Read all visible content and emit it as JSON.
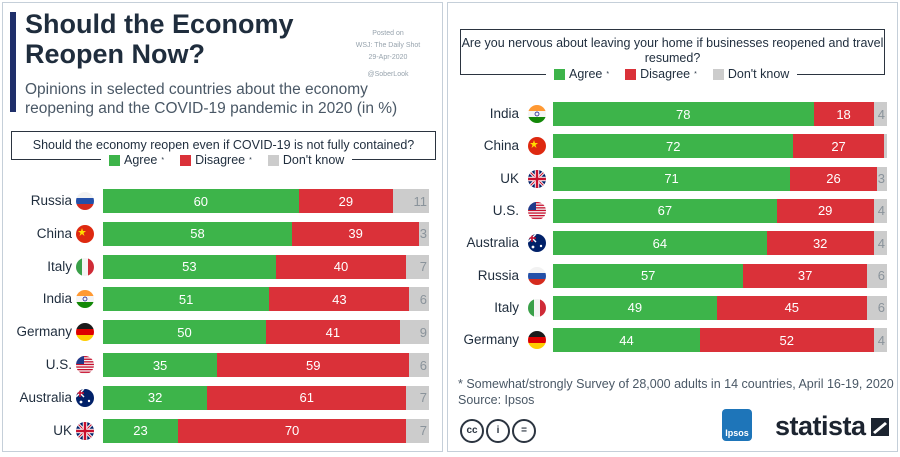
{
  "colors": {
    "agree": "#3db44a",
    "disagree": "#da3139",
    "dont_know": "#cccccc",
    "title_bar": "#1f2f6a"
  },
  "title": "Should the Economy Reopen Now?",
  "subtitle": "Opinions in selected countries about the economy reopening and the COVID-19 pandemic in 2020 (in %)",
  "source_note": {
    "line1": "Posted on",
    "line2": "WSJ: The Daily Shot",
    "line3": "29-Apr-2020",
    "line4": "@SoberLook"
  },
  "footnote": "* Somewhat/strongly Survey of 28,000 adults in 14 countries, April 16-19, 2020",
  "source": "Source: Ipsos",
  "logos": {
    "ipsos": "Ipsos",
    "statista": "statista",
    "cc": "cc",
    "by": "i",
    "nd": "="
  },
  "legend": {
    "agree": "Agree",
    "disagree": "Disagree",
    "dont_know": "Don't know",
    "star": "*"
  },
  "chart_data": [
    {
      "type": "bar",
      "stacked": true,
      "orientation": "horizontal",
      "title": "Should the economy reopen even if COVID-19 is not fully contained?",
      "categories": [
        "Russia",
        "China",
        "Italy",
        "India",
        "Germany",
        "U.S.",
        "Australia",
        "UK"
      ],
      "flags": [
        "russia-flag-icon",
        "china-flag-icon",
        "italy-flag-icon",
        "india-flag-icon",
        "germany-flag-icon",
        "us-flag-icon",
        "australia-flag-icon",
        "uk-flag-icon"
      ],
      "series": [
        {
          "name": "Agree*",
          "values": [
            60,
            58,
            53,
            51,
            50,
            35,
            32,
            23
          ]
        },
        {
          "name": "Disagree*",
          "values": [
            29,
            39,
            40,
            43,
            41,
            59,
            61,
            70
          ]
        },
        {
          "name": "Don't know",
          "values": [
            11,
            3,
            7,
            6,
            9,
            6,
            7,
            7
          ]
        }
      ],
      "xlim": [
        0,
        100
      ]
    },
    {
      "type": "bar",
      "stacked": true,
      "orientation": "horizontal",
      "title": "Are you nervous about leaving your home if businesses reopened and travel resumed?",
      "categories": [
        "India",
        "China",
        "UK",
        "U.S.",
        "Australia",
        "Russia",
        "Italy",
        "Germany"
      ],
      "flags": [
        "india-flag-icon",
        "china-flag-icon",
        "uk-flag-icon",
        "us-flag-icon",
        "australia-flag-icon",
        "russia-flag-icon",
        "italy-flag-icon",
        "germany-flag-icon"
      ],
      "series": [
        {
          "name": "Agree*",
          "values": [
            78,
            72,
            71,
            67,
            64,
            57,
            49,
            44
          ]
        },
        {
          "name": "Disagree*",
          "values": [
            18,
            27,
            26,
            29,
            32,
            37,
            45,
            52
          ]
        },
        {
          "name": "Don't know",
          "values": [
            4,
            1,
            3,
            4,
            4,
            6,
            6,
            4
          ]
        }
      ],
      "xlim": [
        0,
        100
      ]
    }
  ]
}
